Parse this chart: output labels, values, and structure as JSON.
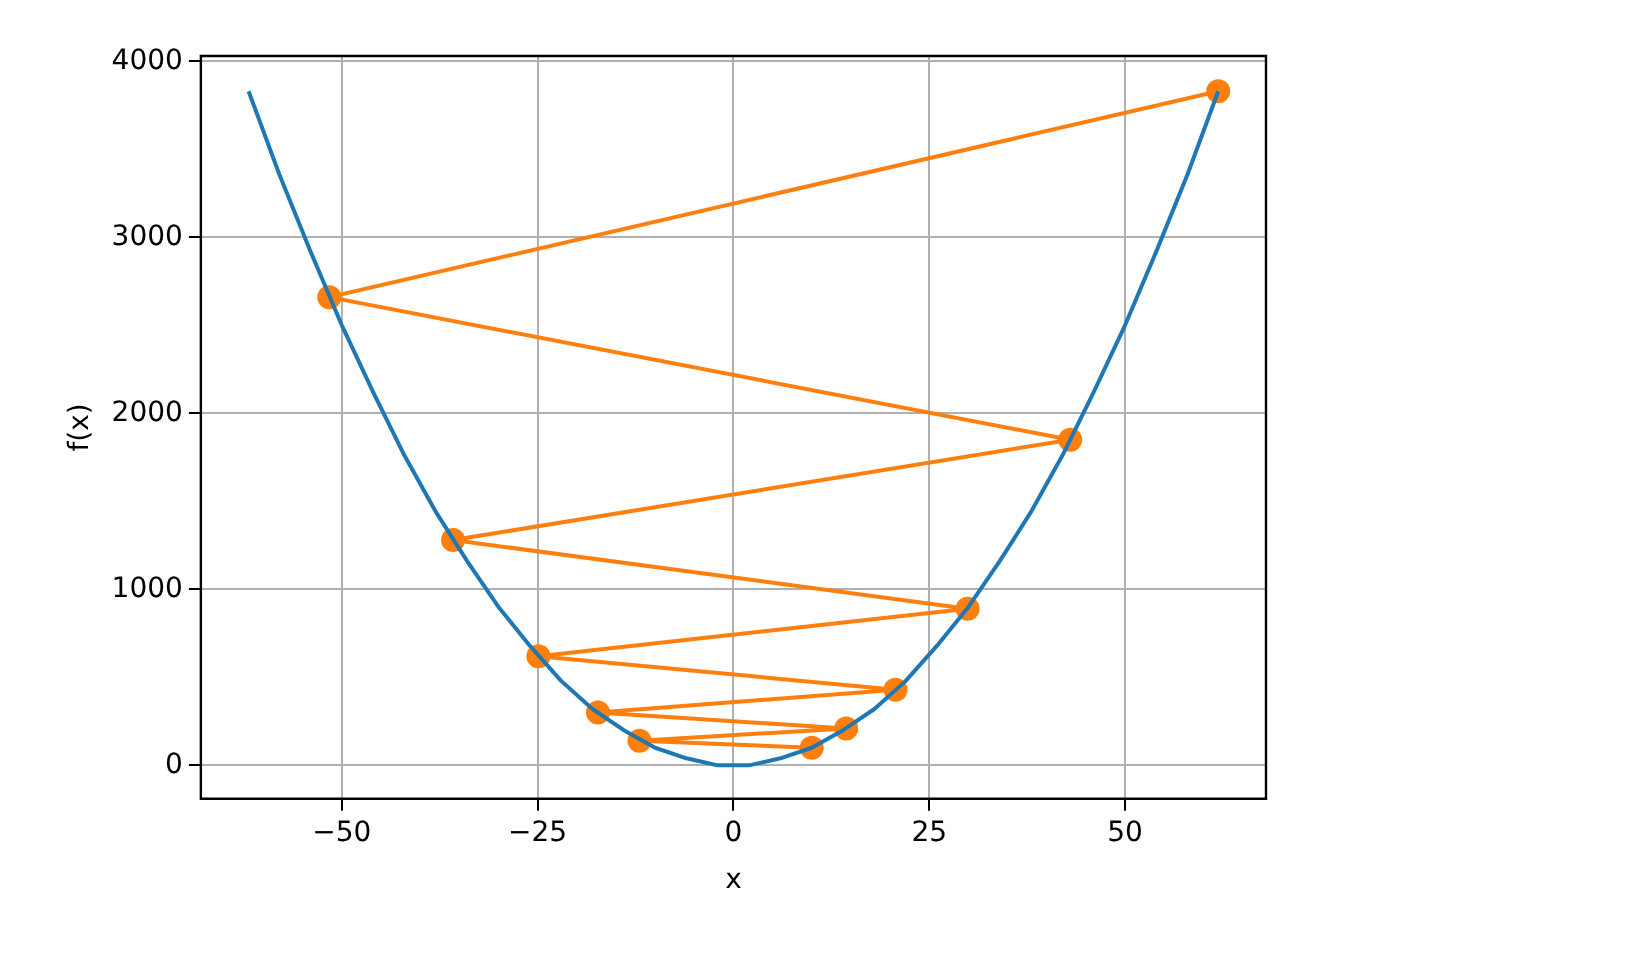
{
  "chart_data": {
    "type": "line",
    "xlabel": "x",
    "ylabel": "f(x)",
    "xlim": [
      -68,
      68
    ],
    "ylim": [
      -190,
      4030
    ],
    "xticks": [
      {
        "value": -50,
        "label": "−50"
      },
      {
        "value": -25,
        "label": "−25"
      },
      0,
      25,
      50
    ],
    "yticks": [
      0,
      1000,
      2000,
      3000,
      4000
    ],
    "grid": true,
    "legend": false,
    "series": [
      {
        "color": "#1f77b4",
        "marker": "none",
        "x": [
          -61.9,
          -58,
          -54,
          -50,
          -46,
          -42,
          -38,
          -34,
          -30,
          -26,
          -22,
          -18,
          -14,
          -10,
          -6,
          -2,
          0,
          2,
          6,
          10,
          14,
          18,
          22,
          26,
          30,
          34,
          38,
          42,
          46,
          50,
          54,
          58,
          61.9
        ],
        "values": [
          3830,
          3360,
          2920,
          2500,
          2120,
          1760,
          1440,
          1160,
          900,
          680,
          480,
          320,
          200,
          100,
          40,
          0,
          0,
          0,
          40,
          100,
          200,
          320,
          480,
          680,
          900,
          1160,
          1440,
          1760,
          2120,
          2500,
          2920,
          3360,
          3830
        ]
      },
      {
        "color": "#ff7f0e",
        "marker": "circle",
        "x": [
          10,
          -12,
          14.4,
          -17.3,
          20.7,
          -24.9,
          29.9,
          -35.8,
          43,
          -51.6,
          61.9
        ],
        "values": [
          100,
          140,
          210,
          300,
          430,
          620,
          890,
          1280,
          1850,
          2660,
          3830
        ]
      }
    ]
  }
}
